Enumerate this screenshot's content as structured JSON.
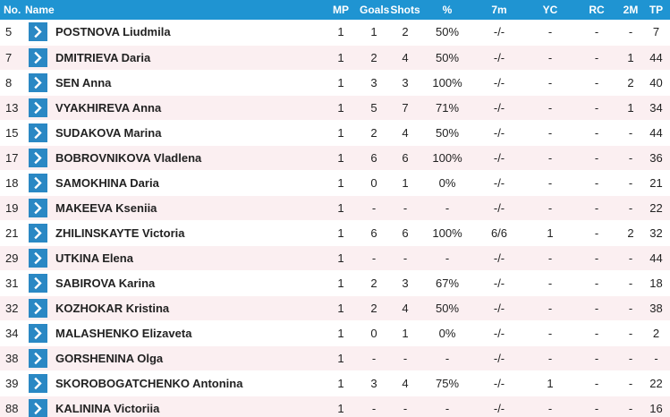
{
  "headers": {
    "no": "No.",
    "name": "Name",
    "mp": "MP",
    "goals": "Goals",
    "shots": "Shots",
    "pct": "%",
    "sevenm": "7m",
    "yc": "YC",
    "rc": "RC",
    "twom": "2M",
    "tp": "TP"
  },
  "icons": {
    "row_button": "chevron-right-icon"
  },
  "colors": {
    "header_bg": "#1f94d2",
    "button_bg": "#2a88c4",
    "stripe_bg": "#fbeff1"
  },
  "players": [
    {
      "no": "5",
      "name": "POSTNOVA Liudmila",
      "mp": "1",
      "goals": "1",
      "shots": "2",
      "pct": "50%",
      "sevenm": "-/-",
      "yc": "-",
      "rc": "-",
      "twom": "-",
      "tp": "7"
    },
    {
      "no": "7",
      "name": "DMITRIEVA Daria",
      "mp": "1",
      "goals": "2",
      "shots": "4",
      "pct": "50%",
      "sevenm": "-/-",
      "yc": "-",
      "rc": "-",
      "twom": "1",
      "tp": "44"
    },
    {
      "no": "8",
      "name": "SEN Anna",
      "mp": "1",
      "goals": "3",
      "shots": "3",
      "pct": "100%",
      "sevenm": "-/-",
      "yc": "-",
      "rc": "-",
      "twom": "2",
      "tp": "40"
    },
    {
      "no": "13",
      "name": "VYAKHIREVA Anna",
      "mp": "1",
      "goals": "5",
      "shots": "7",
      "pct": "71%",
      "sevenm": "-/-",
      "yc": "-",
      "rc": "-",
      "twom": "1",
      "tp": "34"
    },
    {
      "no": "15",
      "name": "SUDAKOVA Marina",
      "mp": "1",
      "goals": "2",
      "shots": "4",
      "pct": "50%",
      "sevenm": "-/-",
      "yc": "-",
      "rc": "-",
      "twom": "-",
      "tp": "44"
    },
    {
      "no": "17",
      "name": "BOBROVNIKOVA Vladlena",
      "mp": "1",
      "goals": "6",
      "shots": "6",
      "pct": "100%",
      "sevenm": "-/-",
      "yc": "-",
      "rc": "-",
      "twom": "-",
      "tp": "36"
    },
    {
      "no": "18",
      "name": "SAMOKHINA Daria",
      "mp": "1",
      "goals": "0",
      "shots": "1",
      "pct": "0%",
      "sevenm": "-/-",
      "yc": "-",
      "rc": "-",
      "twom": "-",
      "tp": "21"
    },
    {
      "no": "19",
      "name": "MAKEEVA Kseniia",
      "mp": "1",
      "goals": "-",
      "shots": "-",
      "pct": "-",
      "sevenm": "-/-",
      "yc": "-",
      "rc": "-",
      "twom": "-",
      "tp": "22"
    },
    {
      "no": "21",
      "name": "ZHILINSKAYTE Victoria",
      "mp": "1",
      "goals": "6",
      "shots": "6",
      "pct": "100%",
      "sevenm": "6/6",
      "yc": "1",
      "rc": "-",
      "twom": "2",
      "tp": "32"
    },
    {
      "no": "29",
      "name": "UTKINA Elena",
      "mp": "1",
      "goals": "-",
      "shots": "-",
      "pct": "-",
      "sevenm": "-/-",
      "yc": "-",
      "rc": "-",
      "twom": "-",
      "tp": "44"
    },
    {
      "no": "31",
      "name": "SABIROVA Karina",
      "mp": "1",
      "goals": "2",
      "shots": "3",
      "pct": "67%",
      "sevenm": "-/-",
      "yc": "-",
      "rc": "-",
      "twom": "-",
      "tp": "18"
    },
    {
      "no": "32",
      "name": "KOZHOKAR Kristina",
      "mp": "1",
      "goals": "2",
      "shots": "4",
      "pct": "50%",
      "sevenm": "-/-",
      "yc": "-",
      "rc": "-",
      "twom": "-",
      "tp": "38"
    },
    {
      "no": "34",
      "name": "MALASHENKO Elizaveta",
      "mp": "1",
      "goals": "0",
      "shots": "1",
      "pct": "0%",
      "sevenm": "-/-",
      "yc": "-",
      "rc": "-",
      "twom": "-",
      "tp": "2"
    },
    {
      "no": "38",
      "name": "GORSHENINA Olga",
      "mp": "1",
      "goals": "-",
      "shots": "-",
      "pct": "-",
      "sevenm": "-/-",
      "yc": "-",
      "rc": "-",
      "twom": "-",
      "tp": "-"
    },
    {
      "no": "39",
      "name": "SKOROBOGATCHENKO Antonina",
      "mp": "1",
      "goals": "3",
      "shots": "4",
      "pct": "75%",
      "sevenm": "-/-",
      "yc": "1",
      "rc": "-",
      "twom": "-",
      "tp": "22"
    },
    {
      "no": "88",
      "name": "KALININA Victoriia",
      "mp": "1",
      "goals": "-",
      "shots": "-",
      "pct": "-",
      "sevenm": "-/-",
      "yc": "-",
      "rc": "-",
      "twom": "-",
      "tp": "16"
    }
  ]
}
